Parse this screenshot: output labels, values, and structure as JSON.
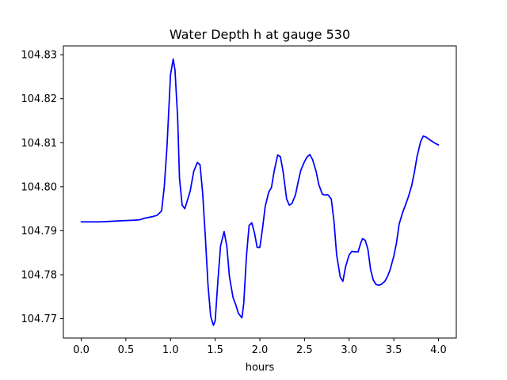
{
  "chart_data": {
    "type": "line",
    "title": "Water Depth h at gauge 530",
    "xlabel": "hours",
    "ylabel": "",
    "xlim": [
      -0.2,
      4.2
    ],
    "ylim": [
      104.7656,
      104.832
    ],
    "xticks": [
      0.0,
      0.5,
      1.0,
      1.5,
      2.0,
      2.5,
      3.0,
      3.5,
      4.0
    ],
    "xtick_labels": [
      "0.0",
      "0.5",
      "1.0",
      "1.5",
      "2.0",
      "2.5",
      "3.0",
      "3.5",
      "4.0"
    ],
    "yticks": [
      104.77,
      104.78,
      104.79,
      104.8,
      104.81,
      104.82,
      104.83
    ],
    "ytick_labels": [
      "104.77",
      "104.78",
      "104.79",
      "104.80",
      "104.81",
      "104.82",
      "104.83"
    ],
    "grid": false,
    "series": [
      {
        "color": "#0000ff",
        "x": [
          0.0,
          0.2,
          0.4,
          0.6,
          0.66,
          0.7,
          0.8,
          0.85,
          0.9,
          0.93,
          0.96,
          1.0,
          1.03,
          1.05,
          1.08,
          1.1,
          1.13,
          1.16,
          1.19,
          1.22,
          1.26,
          1.3,
          1.33,
          1.36,
          1.39,
          1.42,
          1.45,
          1.48,
          1.5,
          1.53,
          1.56,
          1.6,
          1.63,
          1.66,
          1.7,
          1.73,
          1.76,
          1.8,
          1.82,
          1.85,
          1.88,
          1.91,
          1.94,
          1.97,
          2.0,
          2.03,
          2.06,
          2.1,
          2.13,
          2.16,
          2.2,
          2.23,
          2.26,
          2.3,
          2.33,
          2.36,
          2.4,
          2.43,
          2.46,
          2.5,
          2.53,
          2.56,
          2.59,
          2.63,
          2.66,
          2.7,
          2.73,
          2.76,
          2.8,
          2.83,
          2.86,
          2.9,
          2.93,
          2.96,
          3.0,
          3.03,
          3.07,
          3.1,
          3.13,
          3.15,
          3.18,
          3.21,
          3.24,
          3.27,
          3.3,
          3.33,
          3.36,
          3.4,
          3.43,
          3.46,
          3.5,
          3.53,
          3.56,
          3.6,
          3.63,
          3.66,
          3.7,
          3.73,
          3.76,
          3.8,
          3.83,
          3.86,
          3.9,
          3.93,
          3.96,
          4.0
        ],
        "y": [
          104.792,
          104.792,
          104.7922,
          104.7924,
          104.7925,
          104.7928,
          104.7932,
          104.7935,
          104.7945,
          104.8,
          104.809,
          104.8255,
          104.829,
          104.8265,
          104.8155,
          104.802,
          104.7958,
          104.795,
          104.797,
          104.799,
          104.8035,
          104.8055,
          104.805,
          104.7985,
          104.7885,
          104.7775,
          104.7705,
          104.7685,
          104.7695,
          104.7785,
          104.7865,
          104.7898,
          104.7865,
          104.7795,
          104.7748,
          104.7732,
          104.7712,
          104.7702,
          104.7735,
          104.7842,
          104.7912,
          104.7918,
          104.7895,
          104.7862,
          104.7862,
          104.7905,
          104.7955,
          104.7988,
          104.7998,
          104.8035,
          104.8072,
          104.8068,
          104.8035,
          104.7972,
          104.7958,
          104.7962,
          104.7982,
          104.8012,
          104.8038,
          104.8057,
          104.8068,
          104.8073,
          104.8062,
          104.8035,
          104.8005,
          104.7983,
          104.7981,
          104.7982,
          104.7972,
          104.7922,
          104.7845,
          104.7795,
          104.7785,
          104.7818,
          104.7845,
          104.7853,
          104.7852,
          104.7852,
          104.7872,
          104.7882,
          104.7878,
          104.7858,
          104.7812,
          104.7788,
          104.7778,
          104.7776,
          104.7778,
          104.7785,
          104.7796,
          104.7812,
          104.7842,
          104.7872,
          104.7915,
          104.7942,
          104.7958,
          104.7975,
          104.8002,
          104.8032,
          104.8068,
          104.8102,
          104.8115,
          104.8113,
          104.8107,
          104.8103,
          104.8099,
          104.8095
        ]
      }
    ]
  }
}
